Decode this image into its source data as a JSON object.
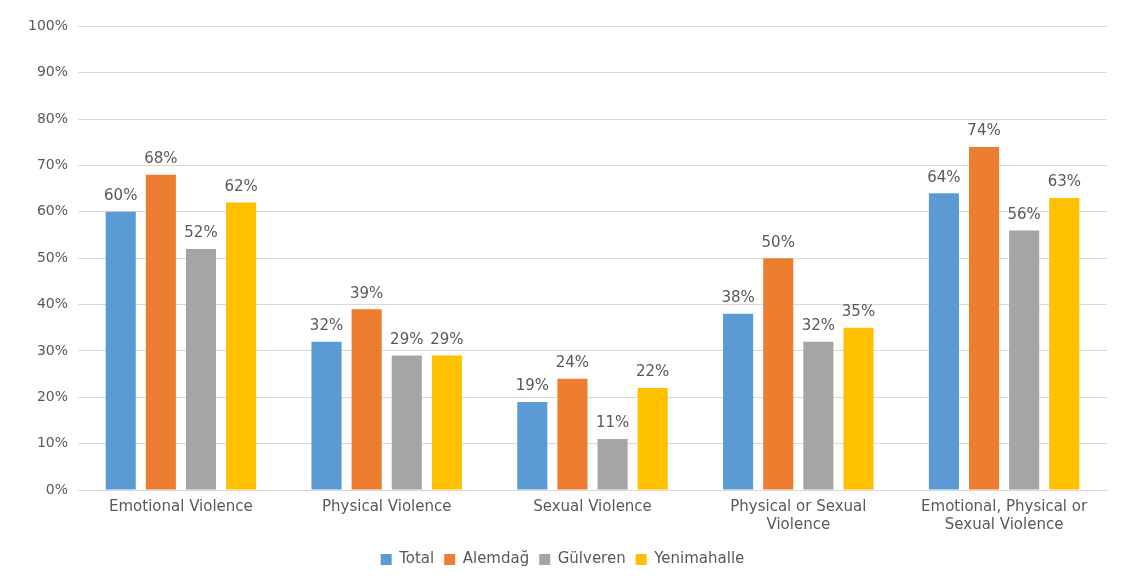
{
  "chart_data": {
    "type": "bar",
    "categories": [
      "Emotional Violence",
      "Physical Violence",
      "Sexual Violence",
      "Physical or Sexual Violence",
      "Emotional, Physical or Sexual Violence"
    ],
    "series": [
      {
        "name": "Total",
        "color": "#5b9bd5",
        "values": [
          60,
          32,
          19,
          38,
          64
        ],
        "value_labels": [
          "60%",
          "32%",
          "19%",
          "38%",
          "64%"
        ]
      },
      {
        "name": "Alemdağ",
        "color": "#ed7d31",
        "values": [
          68,
          39,
          24,
          50,
          74
        ],
        "value_labels": [
          "68%",
          "39%",
          "24%",
          "50%",
          "74%"
        ]
      },
      {
        "name": "Gülveren",
        "color": "#a5a5a5",
        "values": [
          52,
          29,
          11,
          32,
          56
        ],
        "value_labels": [
          "52%",
          "29%",
          "11%",
          "32%",
          "56%"
        ]
      },
      {
        "name": "Yenimahalle",
        "color": "#ffc000",
        "values": [
          62,
          29,
          22,
          35,
          63
        ],
        "value_labels": [
          "62%",
          "29%",
          "22%",
          "35%",
          "63%"
        ]
      }
    ],
    "ylim": [
      0,
      100
    ],
    "yticks": [
      {
        "value": 0,
        "label": "0%"
      },
      {
        "value": 10,
        "label": "10%"
      },
      {
        "value": 20,
        "label": "20%"
      },
      {
        "value": 30,
        "label": "30%"
      },
      {
        "value": 40,
        "label": "40%"
      },
      {
        "value": 50,
        "label": "50%"
      },
      {
        "value": 60,
        "label": "60%"
      },
      {
        "value": 70,
        "label": "70%"
      },
      {
        "value": 80,
        "label": "80%"
      },
      {
        "value": 90,
        "label": "90%"
      },
      {
        "value": 100,
        "label": "100%"
      }
    ],
    "grid": "y",
    "legend": "bottom"
  }
}
